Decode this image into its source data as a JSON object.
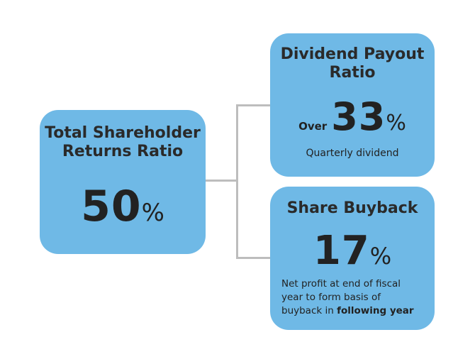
{
  "total": {
    "title_line1": "Total Shareholder",
    "title_line2": "Returns Ratio",
    "value": "50",
    "unit": "%"
  },
  "dividend": {
    "title_line1": "Dividend Payout",
    "title_line2": "Ratio",
    "prefix": "Over",
    "value": "33",
    "unit": "%",
    "note": "Quarterly dividend"
  },
  "buyback": {
    "title": "Share Buyback",
    "value": "17",
    "unit": "%",
    "note_line1": "Net profit at end of fiscal",
    "note_line2": "year to form basis of",
    "note_line3_prefix": "buyback in ",
    "note_line3_bold": "following year"
  },
  "colors": {
    "box_fill": "#6fb9e6",
    "connector": "#bdbdbd",
    "text": "#222222"
  }
}
